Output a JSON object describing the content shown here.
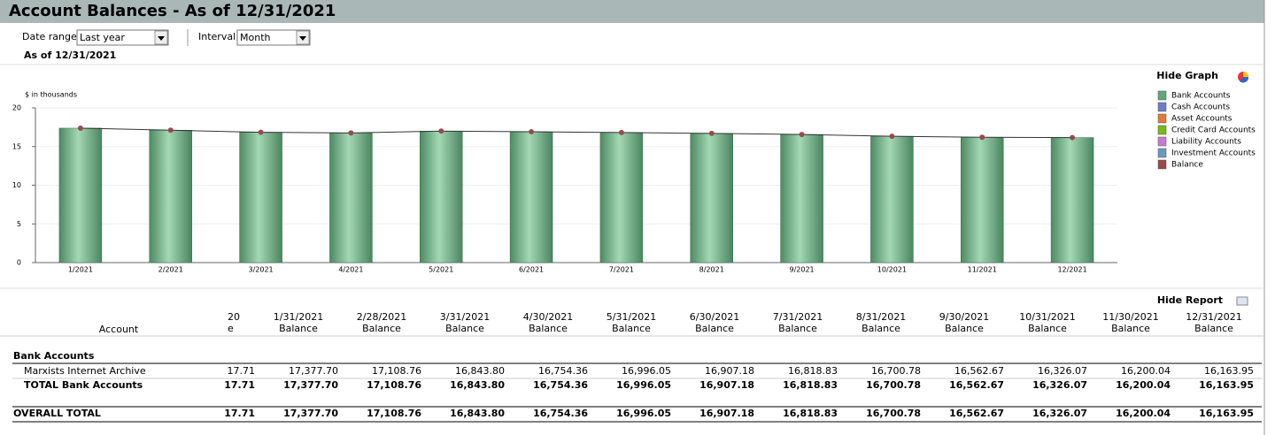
{
  "header": {
    "title": "Account Balances - As of 12/31/2021",
    "date_range_label": "Date range:",
    "date_range": "Last year",
    "interval_label": "Interval:",
    "interval": "Month",
    "as_of": "As of 12/31/2021"
  },
  "graph": {
    "hide_label": "Hide Graph"
  },
  "chart_data": {
    "type": "bar",
    "y_label": "$ in thousands",
    "categories": [
      "1/2021",
      "2/2021",
      "3/2021",
      "4/2021",
      "5/2021",
      "6/2021",
      "7/2021",
      "8/2021",
      "9/2021",
      "10/2021",
      "11/2021",
      "12/2021"
    ],
    "series": [
      {
        "name": "Bank Accounts",
        "color": "#5fa878",
        "type": "bar",
        "values": [
          17.3777,
          17.10876,
          16.8438,
          16.75436,
          16.99605,
          16.90718,
          16.81883,
          16.70078,
          16.56267,
          16.32607,
          16.20004,
          16.16395
        ]
      },
      {
        "name": "Balance",
        "color": "#9a4a4a",
        "type": "line",
        "values": [
          17.3777,
          17.10876,
          16.8438,
          16.75436,
          16.99605,
          16.90718,
          16.81883,
          16.70078,
          16.56267,
          16.32607,
          16.20004,
          16.16395
        ]
      }
    ],
    "empty_legend_entries": [
      {
        "name": "Cash Accounts",
        "color": "#6a7fc8"
      },
      {
        "name": "Asset Accounts",
        "color": "#e07a3a"
      },
      {
        "name": "Credit Card Accounts",
        "color": "#7ab818"
      },
      {
        "name": "Liability Accounts",
        "color": "#c87ad0"
      },
      {
        "name": "Investment Accounts",
        "color": "#6a9ac0"
      }
    ],
    "ylim": [
      0,
      20
    ],
    "yticks": [
      0,
      5,
      10,
      15,
      20
    ],
    "grid": true,
    "legend": "right"
  },
  "report": {
    "hide_label": "Hide Report",
    "account_header": "Account",
    "columns": [
      {
        "date": "20",
        "label": "e"
      },
      {
        "date": "1/31/2021",
        "label": "Balance"
      },
      {
        "date": "2/28/2021",
        "label": "Balance"
      },
      {
        "date": "3/31/2021",
        "label": "Balance"
      },
      {
        "date": "4/30/2021",
        "label": "Balance"
      },
      {
        "date": "5/31/2021",
        "label": "Balance"
      },
      {
        "date": "6/30/2021",
        "label": "Balance"
      },
      {
        "date": "7/31/2021",
        "label": "Balance"
      },
      {
        "date": "8/31/2021",
        "label": "Balance"
      },
      {
        "date": "9/30/2021",
        "label": "Balance"
      },
      {
        "date": "10/31/2021",
        "label": "Balance"
      },
      {
        "date": "11/30/2021",
        "label": "Balance"
      },
      {
        "date": "12/31/2021",
        "label": "Balance"
      }
    ],
    "rows": [
      {
        "label": "Bank Accounts",
        "style": "section",
        "cells": []
      },
      {
        "label": "Marxists Internet Archive",
        "style": "item",
        "cells": [
          "17.71",
          "17,377.70",
          "17,108.76",
          "16,843.80",
          "16,754.36",
          "16,996.05",
          "16,907.18",
          "16,818.83",
          "16,700.78",
          "16,562.67",
          "16,326.07",
          "16,200.04",
          "16,163.95"
        ]
      },
      {
        "label": "TOTAL Bank Accounts",
        "style": "total",
        "cells": [
          "17.71",
          "17,377.70",
          "17,108.76",
          "16,843.80",
          "16,754.36",
          "16,996.05",
          "16,907.18",
          "16,818.83",
          "16,700.78",
          "16,562.67",
          "16,326.07",
          "16,200.04",
          "16,163.95"
        ]
      },
      {
        "label": "OVERALL TOTAL",
        "style": "grand",
        "cells": [
          "17.71",
          "17,377.70",
          "17,108.76",
          "16,843.80",
          "16,754.36",
          "16,996.05",
          "16,907.18",
          "16,818.83",
          "16,700.78",
          "16,562.67",
          "16,326.07",
          "16,200.04",
          "16,163.95"
        ]
      }
    ]
  }
}
